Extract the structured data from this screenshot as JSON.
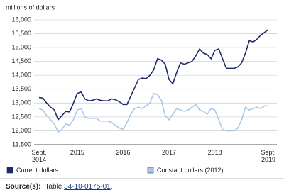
{
  "chart_data": {
    "type": "line",
    "y_label": "millions of dollars",
    "categories": [
      "Sept. 2014",
      null,
      null,
      null,
      null,
      null,
      null,
      null,
      null,
      null,
      "2015",
      null,
      null,
      null,
      null,
      null,
      null,
      null,
      null,
      null,
      null,
      null,
      "2016",
      null,
      null,
      null,
      null,
      null,
      null,
      null,
      null,
      null,
      null,
      null,
      "2017",
      null,
      null,
      null,
      null,
      null,
      null,
      null,
      null,
      null,
      null,
      null,
      "2018",
      null,
      null,
      null,
      null,
      null,
      null,
      null,
      null,
      null,
      null,
      null,
      null,
      null,
      "Sept. 2019"
    ],
    "series": [
      {
        "name": "Current dollars",
        "color": "#1f2a6b",
        "values": [
          13200,
          13180,
          13000,
          12850,
          12750,
          12400,
          12550,
          12700,
          12680,
          13000,
          13350,
          13400,
          13150,
          13080,
          13100,
          13150,
          13100,
          13080,
          13080,
          13150,
          13120,
          13050,
          12950,
          12950,
          13250,
          13550,
          13850,
          13900,
          13880,
          14000,
          14200,
          14600,
          14550,
          14400,
          13850,
          13700,
          14100,
          14450,
          14400,
          14450,
          14500,
          14700,
          14950,
          14800,
          14750,
          14600,
          14900,
          14950,
          14600,
          14250,
          14250,
          14250,
          14300,
          14450,
          14800,
          15250,
          15200,
          15300,
          15450,
          15550,
          15650
        ]
      },
      {
        "name": "Constant dollars (2012)",
        "color": "#a8c8ea",
        "values": [
          12800,
          12750,
          12550,
          12400,
          12250,
          11950,
          12050,
          12250,
          12200,
          12400,
          12750,
          12800,
          12500,
          12450,
          12450,
          12450,
          12350,
          12350,
          12350,
          12300,
          12200,
          12100,
          12050,
          12300,
          12600,
          12800,
          12850,
          12800,
          12900,
          13000,
          13350,
          13300,
          13100,
          12550,
          12400,
          12600,
          12800,
          12750,
          12700,
          12750,
          12850,
          12950,
          12750,
          12700,
          12600,
          12800,
          12750,
          12400,
          12050,
          12000,
          12000,
          12000,
          12100,
          12400,
          12850,
          12750,
          12800,
          12850,
          12800,
          12900,
          12900
        ]
      }
    ],
    "ylim": [
      11500,
      16000
    ],
    "yticks": [
      {
        "value": 11500,
        "label": "11,500"
      },
      {
        "value": 12000,
        "label": "12,000"
      },
      {
        "value": 12500,
        "label": "12,500"
      },
      {
        "value": 13000,
        "label": "13,000"
      },
      {
        "value": 13500,
        "label": "13,500"
      },
      {
        "value": 14000,
        "label": "14,000"
      },
      {
        "value": 14500,
        "label": "14,500"
      },
      {
        "value": 15000,
        "label": "15,000"
      },
      {
        "value": 15500,
        "label": "15,500"
      },
      {
        "value": 16000,
        "label": "16,000"
      }
    ],
    "grid": true,
    "source": {
      "label": "Source(s):",
      "text": "Table",
      "link": "34-10-0175-01",
      "end": "."
    }
  }
}
